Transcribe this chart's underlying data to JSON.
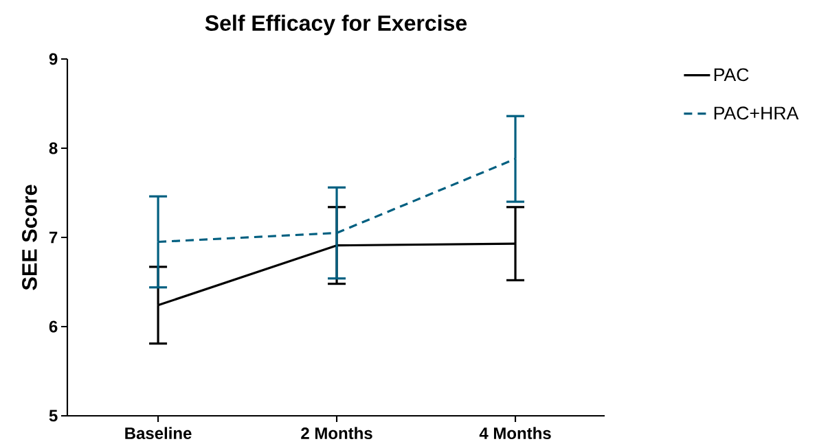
{
  "chart_data": {
    "type": "line",
    "title": "Self Efficacy for Exercise",
    "ylabel": "SEE Score",
    "categories": [
      "Baseline",
      "2 Months",
      "4 Months"
    ],
    "ylim": [
      5,
      9
    ],
    "yticks": [
      5,
      6,
      7,
      8,
      9
    ],
    "legend": "right",
    "grid": false,
    "marker": "none",
    "series": [
      {
        "name": "PAC",
        "color": "#000000",
        "line_style": "solid",
        "values": [
          6.24,
          6.91,
          6.93
        ],
        "errors": [
          0.43,
          0.43,
          0.41
        ]
      },
      {
        "name": "PAC+HRA",
        "color": "#005f80",
        "line_style": "dashed",
        "values": [
          6.95,
          7.05,
          7.88
        ],
        "errors": [
          0.51,
          0.51,
          0.48
        ]
      }
    ]
  }
}
